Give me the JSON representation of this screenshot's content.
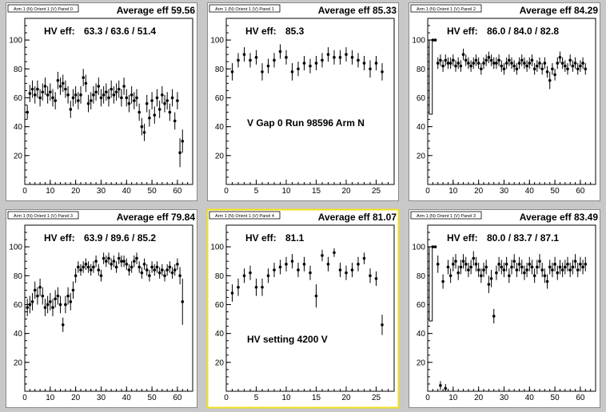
{
  "chart_data": [
    {
      "type": "scatter",
      "panel_tag": "Arm 1 (N) Orient 1 (V) Panel 0",
      "title": "Average eff 59.56",
      "hv_label": "HV eff:",
      "hv_values": "63.3 / 63.6 / 51.4",
      "note": "",
      "xlim": [
        0,
        66
      ],
      "ylim": [
        0,
        115
      ],
      "xticks": [
        0,
        10,
        20,
        30,
        40,
        50,
        60
      ],
      "yticks": [
        20,
        40,
        60,
        80,
        100
      ],
      "x": [
        1,
        2,
        3,
        4,
        5,
        6,
        7,
        8,
        9,
        10,
        11,
        12,
        13,
        14,
        15,
        16,
        17,
        18,
        19,
        20,
        21,
        22,
        23,
        24,
        25,
        26,
        27,
        28,
        29,
        30,
        31,
        32,
        33,
        34,
        35,
        36,
        37,
        38,
        39,
        40,
        41,
        42,
        43,
        44,
        45,
        46,
        47,
        48,
        49,
        50,
        51,
        52,
        53,
        54,
        55,
        56,
        57,
        58,
        59,
        60,
        61,
        62
      ],
      "y": [
        50,
        63,
        66,
        62,
        66,
        60,
        64,
        68,
        62,
        64,
        60,
        58,
        72,
        68,
        70,
        66,
        62,
        52,
        60,
        62,
        58,
        62,
        74,
        70,
        56,
        58,
        62,
        64,
        68,
        60,
        62,
        64,
        60,
        66,
        62,
        64,
        66,
        60,
        68,
        60,
        56,
        62,
        58,
        60,
        50,
        40,
        36,
        56,
        46,
        58,
        48,
        60,
        52,
        62,
        56,
        58,
        50,
        60,
        44,
        58,
        22,
        30
      ],
      "err": [
        5,
        6,
        6,
        6,
        6,
        6,
        6,
        6,
        6,
        6,
        6,
        6,
        6,
        6,
        6,
        6,
        6,
        6,
        6,
        6,
        6,
        6,
        6,
        6,
        6,
        6,
        6,
        6,
        6,
        6,
        6,
        6,
        6,
        6,
        6,
        6,
        6,
        6,
        6,
        6,
        6,
        6,
        6,
        6,
        6,
        6,
        6,
        6,
        6,
        6,
        6,
        6,
        6,
        6,
        6,
        6,
        6,
        6,
        6,
        6,
        10,
        8
      ],
      "hist": null
    },
    {
      "type": "scatter",
      "panel_tag": "Arm 1 (N) Orient 1 (V) Panel 1",
      "title": "Average eff 85.33",
      "hv_label": "HV eff:",
      "hv_values": "85.3",
      "note": "V Gap 0 Run 98596 Arm N",
      "xlim": [
        0,
        28
      ],
      "ylim": [
        0,
        115
      ],
      "xticks": [
        0,
        5,
        10,
        15,
        20,
        25
      ],
      "yticks": [
        20,
        40,
        60,
        80,
        100
      ],
      "x": [
        1,
        2,
        3,
        4,
        5,
        6,
        7,
        8,
        9,
        10,
        11,
        12,
        13,
        14,
        15,
        16,
        17,
        18,
        19,
        20,
        21,
        22,
        23,
        24,
        25,
        26
      ],
      "y": [
        78,
        86,
        90,
        86,
        88,
        78,
        82,
        86,
        92,
        88,
        78,
        80,
        84,
        82,
        84,
        86,
        90,
        88,
        88,
        90,
        88,
        86,
        84,
        80,
        84,
        78
      ],
      "err": [
        6,
        5,
        5,
        5,
        5,
        6,
        5,
        5,
        5,
        5,
        6,
        5,
        5,
        5,
        5,
        5,
        5,
        5,
        5,
        5,
        5,
        5,
        5,
        6,
        5,
        6
      ],
      "hist": null
    },
    {
      "type": "scatter",
      "panel_tag": "Arm 1 (N) Orient 1 (V) Panel 2",
      "title": "Average eff 84.29",
      "hv_label": "HV eff:",
      "hv_values": "86.0 / 84.0 / 82.8",
      "note": "",
      "xlim": [
        0,
        66
      ],
      "ylim": [
        0,
        115
      ],
      "xticks": [
        0,
        10,
        20,
        30,
        40,
        50,
        60
      ],
      "yticks": [
        20,
        40,
        60,
        80,
        100
      ],
      "x": [
        2,
        3,
        4,
        5,
        6,
        7,
        8,
        9,
        10,
        11,
        12,
        13,
        14,
        15,
        16,
        17,
        18,
        19,
        20,
        21,
        22,
        23,
        24,
        25,
        26,
        27,
        28,
        29,
        30,
        31,
        32,
        33,
        34,
        35,
        36,
        37,
        38,
        39,
        40,
        41,
        42,
        43,
        44,
        45,
        46,
        47,
        48,
        49,
        50,
        51,
        52,
        53,
        54,
        55,
        56,
        57,
        58,
        59,
        60,
        61,
        62
      ],
      "y": [
        100,
        100,
        84,
        86,
        82,
        86,
        84,
        84,
        86,
        82,
        84,
        82,
        90,
        86,
        84,
        82,
        84,
        86,
        84,
        80,
        84,
        86,
        88,
        86,
        84,
        84,
        86,
        82,
        80,
        84,
        86,
        84,
        82,
        80,
        84,
        86,
        84,
        82,
        84,
        86,
        80,
        82,
        84,
        80,
        84,
        78,
        72,
        80,
        76,
        84,
        88,
        84,
        82,
        80,
        86,
        82,
        84,
        80,
        82,
        84,
        80
      ],
      "err": [
        1,
        1,
        4,
        4,
        4,
        4,
        4,
        4,
        4,
        4,
        4,
        4,
        4,
        4,
        4,
        4,
        4,
        4,
        4,
        4,
        4,
        4,
        4,
        4,
        4,
        4,
        4,
        4,
        4,
        4,
        4,
        4,
        4,
        4,
        4,
        4,
        4,
        4,
        4,
        4,
        4,
        4,
        4,
        4,
        4,
        4,
        6,
        4,
        4,
        4,
        4,
        4,
        4,
        4,
        4,
        4,
        4,
        4,
        4,
        4,
        4
      ],
      "hist": {
        "x0": 0.6,
        "x1": 1.8,
        "value": 100
      }
    },
    {
      "type": "scatter",
      "panel_tag": "Arm 1 (N) Orient 1 (V) Panel 3",
      "title": "Average eff 79.84",
      "hv_label": "HV eff:",
      "hv_values": "63.9 / 89.6 / 85.2",
      "note": "",
      "xlim": [
        0,
        66
      ],
      "ylim": [
        0,
        115
      ],
      "xticks": [
        0,
        10,
        20,
        30,
        40,
        50,
        60
      ],
      "yticks": [
        20,
        40,
        60,
        80,
        100
      ],
      "x": [
        1,
        2,
        3,
        4,
        5,
        6,
        7,
        8,
        9,
        10,
        11,
        12,
        13,
        14,
        15,
        16,
        17,
        18,
        19,
        20,
        21,
        22,
        23,
        24,
        25,
        26,
        27,
        28,
        29,
        30,
        31,
        32,
        33,
        34,
        35,
        36,
        37,
        38,
        39,
        40,
        41,
        42,
        43,
        44,
        45,
        46,
        47,
        48,
        49,
        50,
        51,
        52,
        53,
        54,
        55,
        56,
        57,
        58,
        59,
        60,
        61,
        62
      ],
      "y": [
        58,
        60,
        62,
        70,
        66,
        72,
        66,
        58,
        60,
        62,
        58,
        64,
        66,
        60,
        46,
        60,
        66,
        62,
        70,
        80,
        86,
        84,
        86,
        88,
        86,
        84,
        86,
        90,
        84,
        80,
        92,
        90,
        92,
        88,
        90,
        86,
        92,
        90,
        90,
        88,
        84,
        86,
        90,
        92,
        86,
        82,
        88,
        84,
        80,
        86,
        84,
        86,
        82,
        84,
        80,
        84,
        86,
        82,
        84,
        88,
        80,
        62
      ],
      "err": [
        6,
        6,
        6,
        6,
        6,
        6,
        6,
        6,
        6,
        6,
        6,
        6,
        6,
        6,
        5,
        6,
        6,
        6,
        6,
        5,
        4,
        4,
        4,
        4,
        4,
        4,
        4,
        4,
        4,
        4,
        4,
        4,
        4,
        4,
        4,
        4,
        4,
        4,
        4,
        4,
        4,
        4,
        4,
        4,
        4,
        4,
        4,
        4,
        4,
        4,
        4,
        4,
        4,
        4,
        4,
        4,
        4,
        4,
        4,
        4,
        6,
        16
      ],
      "hist": null
    },
    {
      "type": "scatter",
      "panel_tag": "Arm 1 (N) Orient 1 (V) Panel 4",
      "title": "Average eff 81.07",
      "hv_label": "HV eff:",
      "hv_values": "81.1",
      "note": "HV setting 4200 V",
      "xlim": [
        0,
        28
      ],
      "ylim": [
        0,
        115
      ],
      "xticks": [
        0,
        5,
        10,
        15,
        20,
        25
      ],
      "yticks": [
        20,
        40,
        60,
        80,
        100
      ],
      "x": [
        1,
        2,
        3,
        4,
        5,
        6,
        7,
        8,
        9,
        10,
        11,
        12,
        13,
        14,
        15,
        16,
        17,
        18,
        19,
        20,
        21,
        22,
        23,
        24,
        25,
        26
      ],
      "y": [
        68,
        72,
        80,
        82,
        72,
        72,
        80,
        84,
        86,
        88,
        90,
        84,
        88,
        82,
        66,
        94,
        88,
        96,
        84,
        82,
        84,
        88,
        92,
        80,
        78,
        46
      ],
      "err": [
        6,
        6,
        5,
        5,
        6,
        6,
        5,
        5,
        5,
        5,
        5,
        5,
        5,
        5,
        8,
        4,
        5,
        3,
        5,
        5,
        5,
        5,
        4,
        5,
        5,
        7
      ],
      "hist": null
    },
    {
      "type": "scatter",
      "panel_tag": "Arm 1 (N) Orient 1 (V) Panel 3",
      "title": "Average eff 83.49",
      "hv_label": "HV eff:",
      "hv_values": "80.0 / 83.7 / 87.1",
      "note": "",
      "xlim": [
        0,
        66
      ],
      "ylim": [
        0,
        115
      ],
      "xticks": [
        0,
        10,
        20,
        30,
        40,
        50,
        60
      ],
      "yticks": [
        20,
        40,
        60,
        80,
        100
      ],
      "x": [
        2,
        3,
        4,
        5,
        6,
        7,
        8,
        9,
        10,
        11,
        12,
        13,
        14,
        15,
        16,
        17,
        18,
        19,
        20,
        21,
        22,
        23,
        24,
        25,
        26,
        27,
        28,
        29,
        30,
        31,
        32,
        33,
        34,
        35,
        36,
        37,
        38,
        39,
        40,
        41,
        42,
        43,
        44,
        45,
        46,
        47,
        48,
        49,
        50,
        51,
        52,
        53,
        54,
        55,
        56,
        57,
        58,
        59,
        60,
        61,
        62
      ],
      "y": [
        100,
        100,
        88,
        4,
        76,
        2,
        86,
        80,
        88,
        90,
        82,
        86,
        90,
        88,
        84,
        86,
        92,
        88,
        84,
        80,
        84,
        86,
        74,
        78,
        52,
        82,
        88,
        86,
        84,
        88,
        80,
        86,
        90,
        84,
        88,
        86,
        82,
        84,
        88,
        86,
        80,
        86,
        90,
        84,
        80,
        76,
        86,
        84,
        88,
        82,
        86,
        84,
        86,
        88,
        84,
        86,
        90,
        84,
        88,
        86,
        88
      ],
      "err": [
        1,
        1,
        6,
        3,
        5,
        3,
        5,
        5,
        5,
        5,
        5,
        5,
        5,
        5,
        5,
        5,
        5,
        5,
        5,
        5,
        5,
        5,
        6,
        6,
        5,
        5,
        5,
        5,
        5,
        5,
        5,
        5,
        5,
        5,
        5,
        5,
        5,
        5,
        5,
        5,
        5,
        5,
        5,
        5,
        5,
        5,
        5,
        5,
        5,
        5,
        5,
        5,
        5,
        5,
        5,
        5,
        5,
        5,
        5,
        5,
        5
      ],
      "hist": {
        "x0": 0.6,
        "x1": 1.8,
        "value": 100
      }
    }
  ]
}
